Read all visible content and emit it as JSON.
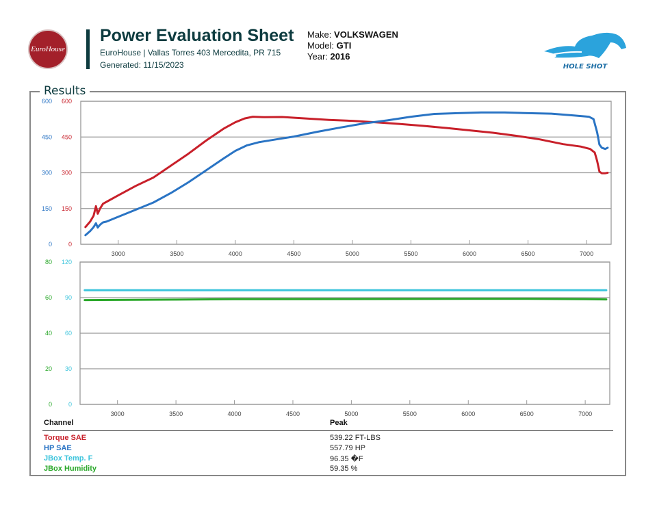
{
  "header": {
    "logo_text": "EuroHouse",
    "title": "Power Evaluation Sheet",
    "address": "EuroHouse | Vallas Torres 403 Mercedita, PR 715",
    "generated": "Generated: 11/15/2023",
    "make_label": "Make:",
    "make": "VOLKSWAGEN",
    "model_label": "Model:",
    "model": "GTI",
    "year_label": "Year:",
    "year": "2016",
    "brand_logo_text": "HOLE SHOT"
  },
  "results_title": "Results",
  "table": {
    "col_channel": "Channel",
    "col_peak": "Peak",
    "rows": [
      {
        "channel": "Torque SAE",
        "peak": "539.22 FT-LBS",
        "color": "#c8202a"
      },
      {
        "channel": "HP SAE",
        "peak": "557.79 HP",
        "color": "#2a74c4"
      },
      {
        "channel": "JBox Temp. F",
        "peak": "96.35 �F",
        "color": "#3cc4dc"
      },
      {
        "channel": "JBox Humidity",
        "peak": "59.35 %",
        "color": "#2aa82a"
      }
    ]
  },
  "chart_data": [
    {
      "type": "line",
      "xlim": [
        2680,
        7210
      ],
      "x_ticks": [
        "3000",
        "3500",
        "4000",
        "4500",
        "5000",
        "5500",
        "6000",
        "6500",
        "7000"
      ],
      "y_left_outer": {
        "ticks": [
          "600",
          "450",
          "300",
          "150",
          "0"
        ],
        "color": "#2a74c4",
        "ylim": [
          0,
          600
        ]
      },
      "y_left_inner": {
        "ticks": [
          "600",
          "450",
          "300",
          "150",
          "0"
        ],
        "color": "#c8202a",
        "ylim": [
          0,
          600
        ]
      },
      "grid": true,
      "series": [
        {
          "name": "Torque SAE",
          "color": "#c8202a",
          "axis": "inner",
          "x": [
            2720,
            2760,
            2790,
            2810,
            2825,
            2845,
            2870,
            2900,
            3000,
            3150,
            3300,
            3450,
            3600,
            3750,
            3900,
            4000,
            4080,
            4150,
            4250,
            4400,
            4600,
            4800,
            5000,
            5200,
            5400,
            5600,
            5800,
            6000,
            6200,
            6400,
            6600,
            6800,
            6950,
            7030,
            7070,
            7090,
            7110,
            7130,
            7160,
            7180
          ],
          "y": [
            72,
            95,
            120,
            160,
            128,
            150,
            170,
            178,
            205,
            245,
            280,
            330,
            380,
            435,
            485,
            512,
            528,
            535,
            533,
            534,
            528,
            522,
            518,
            512,
            505,
            497,
            488,
            478,
            468,
            455,
            440,
            420,
            410,
            400,
            385,
            350,
            305,
            298,
            298,
            300
          ]
        },
        {
          "name": "HP SAE",
          "color": "#2a74c4",
          "axis": "outer",
          "x": [
            2720,
            2760,
            2790,
            2810,
            2825,
            2845,
            2870,
            2900,
            3000,
            3150,
            3300,
            3450,
            3600,
            3750,
            3900,
            4000,
            4100,
            4200,
            4350,
            4500,
            4700,
            4900,
            5100,
            5300,
            5500,
            5700,
            5900,
            6100,
            6300,
            6500,
            6700,
            6900,
            7020,
            7060,
            7090,
            7110,
            7130,
            7160,
            7180
          ],
          "y": [
            38,
            55,
            72,
            88,
            70,
            82,
            92,
            95,
            115,
            145,
            175,
            215,
            260,
            310,
            360,
            392,
            415,
            428,
            440,
            452,
            472,
            490,
            507,
            520,
            535,
            547,
            550,
            553,
            553,
            550,
            548,
            540,
            535,
            525,
            470,
            418,
            405,
            400,
            405
          ]
        }
      ]
    },
    {
      "type": "line",
      "xlim": [
        2680,
        7210
      ],
      "x_ticks": [
        "3000",
        "3500",
        "4000",
        "4500",
        "5000",
        "5500",
        "6000",
        "6500",
        "7000"
      ],
      "y_left_outer": {
        "ticks": [
          "80",
          "60",
          "40",
          "20",
          "0"
        ],
        "color": "#2aa82a",
        "ylim": [
          0,
          80
        ]
      },
      "y_left_inner": {
        "ticks": [
          "120",
          "90",
          "60",
          "30",
          "0"
        ],
        "color": "#3cc4dc",
        "ylim": [
          0,
          120
        ]
      },
      "grid": true,
      "series": [
        {
          "name": "JBox Temp. F",
          "color": "#3cc4dc",
          "axis": "inner",
          "x": [
            2720,
            4000,
            5000,
            6000,
            7180
          ],
          "y": [
            96.3,
            96.3,
            96.3,
            96.3,
            96.3
          ]
        },
        {
          "name": "JBox Humidity",
          "color": "#2aa82a",
          "axis": "outer",
          "x": [
            2720,
            3500,
            4000,
            5000,
            6000,
            6500,
            7000,
            7180
          ],
          "y": [
            58.6,
            58.9,
            59.1,
            59.2,
            59.3,
            59.35,
            59.1,
            59.0
          ]
        }
      ]
    }
  ]
}
